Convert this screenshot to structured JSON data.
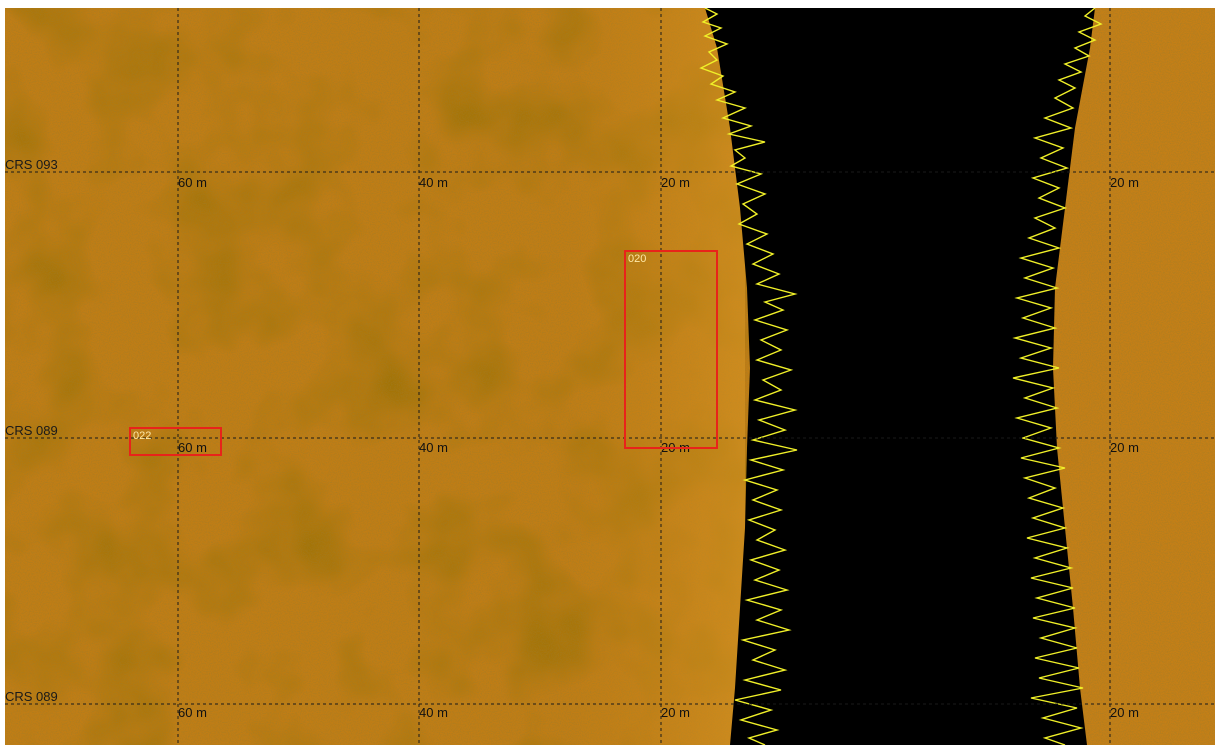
{
  "colors": {
    "seabed": "#c07d15",
    "seabed_dark": "#8a4e06",
    "seabed_light": "#dd9a2c",
    "water_column": "#000000",
    "bottom_trace": "#f0f028",
    "target_box": "#e8231a",
    "grid": "#1a1a1a"
  },
  "track_lines": [
    {
      "label": "CRS 093"
    },
    {
      "label": "CRS 089"
    },
    {
      "label": "CRS 089"
    }
  ],
  "range_labels": {
    "row1": [
      "60 m",
      "40 m",
      "20 m",
      "20 m"
    ],
    "row2": [
      "60 m",
      "40 m",
      "20 m",
      "20 m"
    ],
    "row3": [
      "60 m",
      "40 m",
      "20 m",
      "20 m"
    ]
  },
  "targets": [
    {
      "id": "020"
    },
    {
      "id": "022"
    }
  ]
}
